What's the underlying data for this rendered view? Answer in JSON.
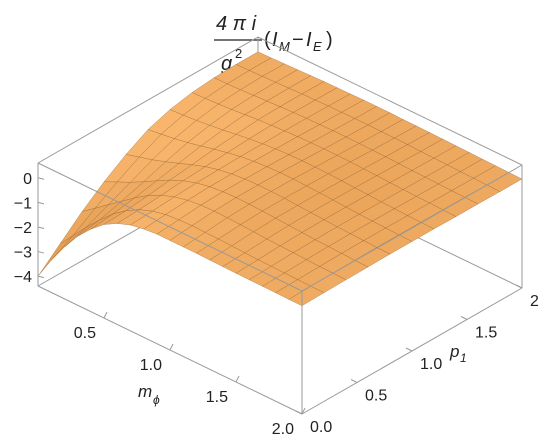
{
  "chart_data": {
    "type": "surface3d",
    "title": {
      "numerator": "4 π i",
      "denominator_base": "g",
      "denominator_exp": "2",
      "open": "(",
      "left_sym": "I",
      "left_sub": "M",
      "minus": "−",
      "right_sym": "I",
      "right_sub": "E",
      "close": ")"
    },
    "xlabel": {
      "sym": "m",
      "sub": "ϕ"
    },
    "ylabel": {
      "sym": "p",
      "sub": "1"
    },
    "xlim": [
      0.0,
      2.0
    ],
    "ylim": [
      0.0,
      2.0
    ],
    "zlim": [
      -4.4,
      0.6
    ],
    "x_ticks": [
      "0.5",
      "1.0",
      "1.5",
      "2.0"
    ],
    "y_ticks": [
      "0.0",
      "0.5",
      "1.0",
      "1.5",
      "2.0"
    ],
    "z_ticks": [
      "0",
      "−1",
      "−2",
      "−3",
      "−4"
    ],
    "x_tick_values": [
      0.5,
      1.0,
      1.5,
      2.0
    ],
    "y_tick_values": [
      0.0,
      0.5,
      1.0,
      1.5,
      2.0
    ],
    "z_tick_values": [
      0,
      -1,
      -2,
      -3,
      -4
    ],
    "grid": false,
    "box": true,
    "mesh_x": [
      0.0,
      0.1,
      0.2,
      0.3,
      0.4,
      0.5,
      0.6,
      0.7,
      0.8,
      0.9,
      1.0,
      1.1,
      1.2,
      1.3,
      1.4,
      1.5,
      1.6,
      1.7,
      1.8,
      1.9,
      2.0
    ],
    "mesh_y": [
      0.0,
      0.2,
      0.4,
      0.6,
      0.8,
      1.0,
      1.2,
      1.4,
      1.6,
      1.8,
      2.0
    ],
    "z_along_x_at_p1_0": [
      -4.0,
      -3.1,
      -2.3,
      -1.6,
      -1.05,
      -0.6,
      -0.3,
      -0.1,
      0.0,
      0.05,
      0.05,
      0.05,
      0.05,
      0.04,
      0.03,
      0.02,
      0.02,
      0.01,
      0.01,
      0.0,
      0.0
    ],
    "z_at_m_phi_0_along_p1": [
      -4.0,
      -3.2,
      -2.4,
      -1.7,
      -1.1,
      -0.6,
      -0.3,
      -0.12,
      -0.03,
      0.0,
      0.0
    ],
    "z_values": [
      [
        -4.0,
        -3.1,
        -2.3,
        -1.6,
        -1.05,
        -0.6,
        -0.3,
        -0.1,
        0.0,
        0.05,
        0.05,
        0.05,
        0.05,
        0.04,
        0.03,
        0.02,
        0.02,
        0.01,
        0.01,
        0.0,
        0.0
      ],
      [
        -3.2,
        -2.6,
        -2.0,
        -1.45,
        -0.95,
        -0.55,
        -0.25,
        -0.05,
        0.07,
        0.12,
        0.14,
        0.13,
        0.12,
        0.1,
        0.08,
        0.06,
        0.05,
        0.04,
        0.03,
        0.02,
        0.02
      ],
      [
        -2.4,
        -2.0,
        -1.6,
        -1.2,
        -0.8,
        -0.45,
        -0.18,
        0.02,
        0.14,
        0.2,
        0.22,
        0.21,
        0.19,
        0.16,
        0.13,
        0.11,
        0.09,
        0.07,
        0.05,
        0.04,
        0.03
      ],
      [
        -1.7,
        -1.45,
        -1.2,
        -0.92,
        -0.62,
        -0.33,
        -0.1,
        0.07,
        0.18,
        0.24,
        0.26,
        0.25,
        0.23,
        0.2,
        0.17,
        0.14,
        0.11,
        0.09,
        0.07,
        0.05,
        0.04
      ],
      [
        -1.1,
        -0.95,
        -0.8,
        -0.62,
        -0.42,
        -0.22,
        -0.04,
        0.1,
        0.19,
        0.24,
        0.26,
        0.26,
        0.24,
        0.21,
        0.18,
        0.15,
        0.12,
        0.1,
        0.08,
        0.06,
        0.05
      ],
      [
        -0.6,
        -0.53,
        -0.45,
        -0.35,
        -0.23,
        -0.1,
        0.02,
        0.12,
        0.19,
        0.23,
        0.25,
        0.25,
        0.23,
        0.21,
        0.18,
        0.15,
        0.12,
        0.1,
        0.08,
        0.06,
        0.05
      ],
      [
        -0.3,
        -0.27,
        -0.22,
        -0.16,
        -0.09,
        -0.01,
        0.07,
        0.13,
        0.18,
        0.21,
        0.22,
        0.22,
        0.21,
        0.19,
        0.16,
        0.14,
        0.11,
        0.09,
        0.07,
        0.06,
        0.05
      ],
      [
        -0.12,
        -0.1,
        -0.07,
        -0.03,
        0.02,
        0.07,
        0.11,
        0.14,
        0.17,
        0.18,
        0.19,
        0.19,
        0.18,
        0.16,
        0.14,
        0.12,
        0.1,
        0.08,
        0.07,
        0.05,
        0.04
      ],
      [
        -0.03,
        -0.02,
        0.0,
        0.03,
        0.06,
        0.09,
        0.12,
        0.14,
        0.15,
        0.16,
        0.16,
        0.16,
        0.15,
        0.14,
        0.12,
        0.1,
        0.09,
        0.07,
        0.06,
        0.05,
        0.04
      ],
      [
        0.0,
        0.01,
        0.03,
        0.05,
        0.07,
        0.1,
        0.11,
        0.13,
        0.13,
        0.14,
        0.14,
        0.13,
        0.13,
        0.12,
        0.1,
        0.09,
        0.08,
        0.06,
        0.05,
        0.04,
        0.03
      ],
      [
        0.0,
        0.01,
        0.03,
        0.05,
        0.07,
        0.09,
        0.1,
        0.11,
        0.12,
        0.12,
        0.12,
        0.11,
        0.11,
        0.1,
        0.09,
        0.08,
        0.07,
        0.06,
        0.05,
        0.04,
        0.03
      ]
    ],
    "colors": {
      "surface_light": "#f6b36a",
      "surface_mid": "#e89035",
      "surface_dark": "#b05e14",
      "mesh_line": "#7a4a1e",
      "box_line": "#9a9a9a",
      "text": "#222222"
    }
  }
}
